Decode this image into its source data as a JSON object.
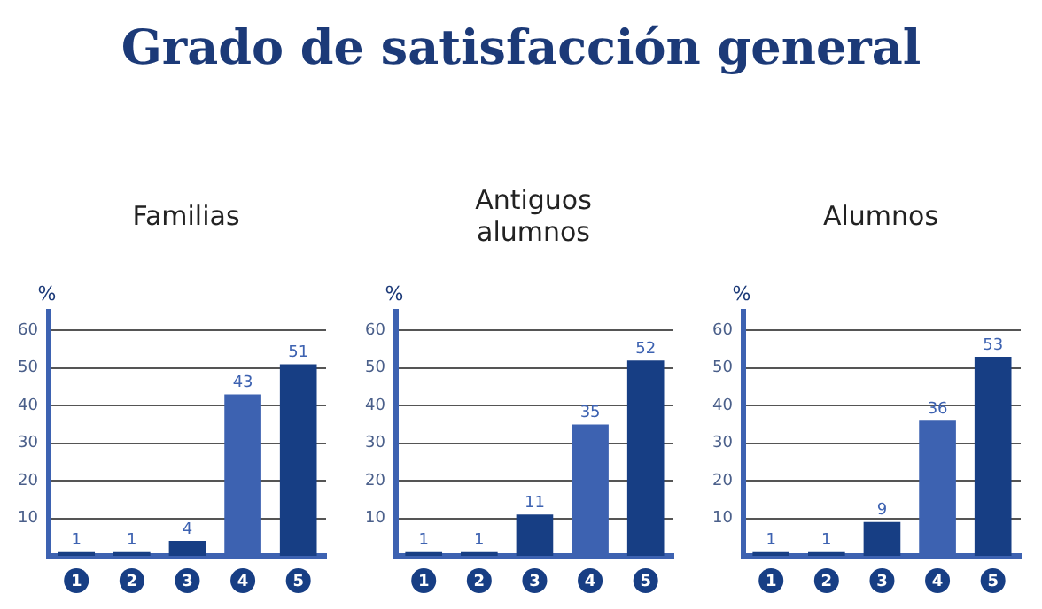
{
  "chart_data": [
    {
      "type": "other",
      "title": "Grado de satisfacción general"
    },
    {
      "type": "bar",
      "title": "Familias",
      "ylabel": "%",
      "categories": [
        "1",
        "2",
        "3",
        "4",
        "5"
      ],
      "values": [
        1,
        1,
        4,
        43,
        51
      ],
      "colors": [
        "#173e84",
        "#173e84",
        "#173e84",
        "#3d62b1",
        "#173e84"
      ],
      "ylim": [
        0,
        65
      ],
      "yticks": [
        10,
        20,
        30,
        40,
        50,
        60
      ],
      "grid": "y",
      "data_labels": true
    },
    {
      "type": "bar",
      "title": "Antiguos alumnos",
      "ylabel": "%",
      "categories": [
        "1",
        "2",
        "3",
        "4",
        "5"
      ],
      "values": [
        1,
        1,
        11,
        35,
        52
      ],
      "colors": [
        "#173e84",
        "#173e84",
        "#173e84",
        "#3d62b1",
        "#173e84"
      ],
      "ylim": [
        0,
        65
      ],
      "yticks": [
        10,
        20,
        30,
        40,
        50,
        60
      ],
      "grid": "y",
      "data_labels": true
    },
    {
      "type": "bar",
      "title": "Alumnos",
      "ylabel": "%",
      "categories": [
        "1",
        "2",
        "3",
        "4",
        "5"
      ],
      "values": [
        1,
        1,
        9,
        36,
        53
      ],
      "colors": [
        "#173e84",
        "#173e84",
        "#173e84",
        "#3d62b1",
        "#173e84"
      ],
      "ylim": [
        0,
        65
      ],
      "yticks": [
        10,
        20,
        30,
        40,
        50,
        60
      ],
      "grid": "y",
      "data_labels": true
    }
  ]
}
